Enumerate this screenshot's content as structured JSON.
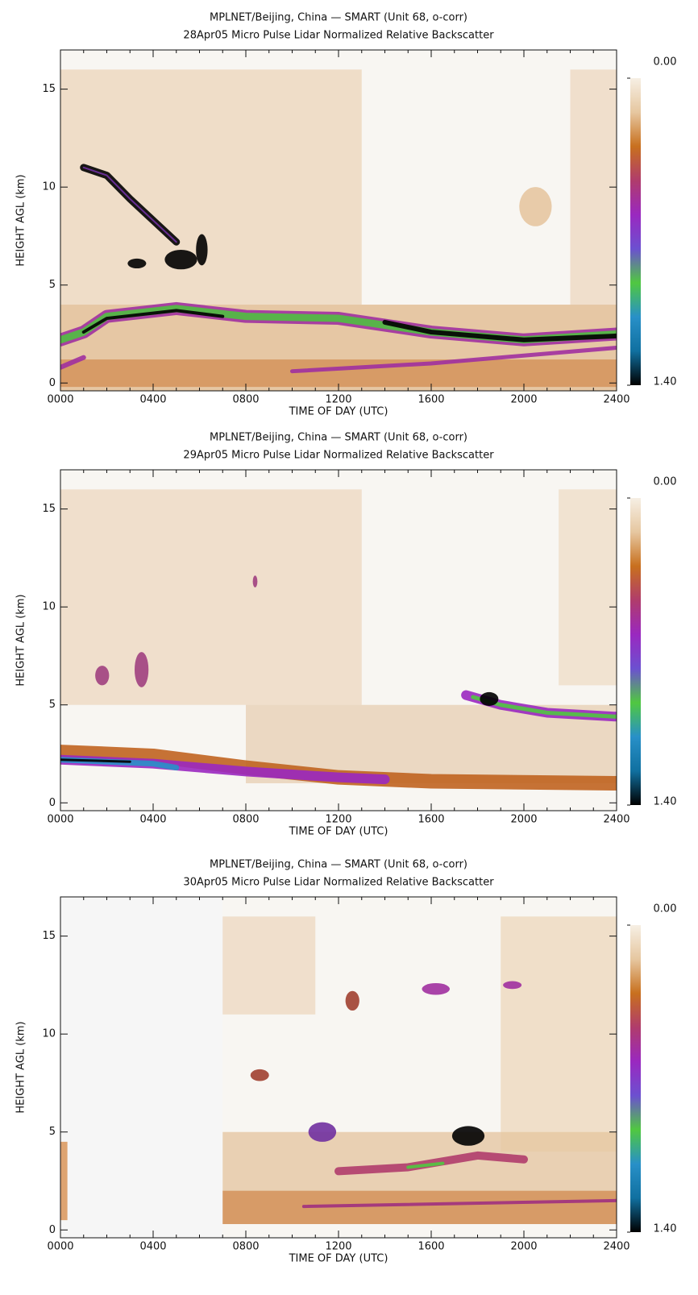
{
  "chart_data": [
    {
      "type": "heatmap",
      "title": "MPLNET/Beijing, China — SMART (Unit 68, o-corr)",
      "subtitle": "28Apr05 Micro Pulse Lidar Normalized Relative Backscatter",
      "x_label": "TIME OF DAY (UTC)",
      "y_label": "HEIGHT AGL (km)",
      "xlim": [
        0,
        24
      ],
      "xticks": [
        {
          "value": 0,
          "label": "0000"
        },
        {
          "value": 4,
          "label": "0400"
        },
        {
          "value": 8,
          "label": "0800"
        },
        {
          "value": 12,
          "label": "1200"
        },
        {
          "value": 16,
          "label": "1600"
        },
        {
          "value": 20,
          "label": "2000"
        },
        {
          "value": 24,
          "label": "2400"
        }
      ],
      "ylim": [
        -0.4,
        17
      ],
      "yticks": [
        0,
        5,
        10,
        15
      ],
      "clim": [
        0,
        1.4
      ],
      "cticks": [
        {
          "value": 0,
          "label": "0.00"
        },
        {
          "value": 1.4,
          "label": "1.40"
        }
      ],
      "colormap": [
        "#f6efe4",
        "#e6c7a0",
        "#c8701e",
        "#b03c6c",
        "#9a28c0",
        "#6c50d0",
        "#50c840",
        "#2890c8",
        "#1070a0",
        "#000000"
      ]
    },
    {
      "type": "heatmap",
      "title": "MPLNET/Beijing, China — SMART (Unit 68, o-corr)",
      "subtitle": "29Apr05 Micro Pulse Lidar Normalized Relative Backscatter",
      "x_label": "TIME OF DAY (UTC)",
      "y_label": "HEIGHT AGL (km)",
      "xlim": [
        0,
        24
      ],
      "xticks": [
        {
          "value": 0,
          "label": "0000"
        },
        {
          "value": 4,
          "label": "0400"
        },
        {
          "value": 8,
          "label": "0800"
        },
        {
          "value": 12,
          "label": "1200"
        },
        {
          "value": 16,
          "label": "1600"
        },
        {
          "value": 20,
          "label": "2000"
        },
        {
          "value": 24,
          "label": "2400"
        }
      ],
      "ylim": [
        -0.4,
        17
      ],
      "yticks": [
        0,
        5,
        10,
        15
      ],
      "clim": [
        0,
        1.4
      ],
      "cticks": [
        {
          "value": 0,
          "label": "0.00"
        },
        {
          "value": 1.4,
          "label": "1.40"
        }
      ],
      "colormap": [
        "#f6efe4",
        "#e6c7a0",
        "#c8701e",
        "#b03c6c",
        "#9a28c0",
        "#6c50d0",
        "#50c840",
        "#2890c8",
        "#1070a0",
        "#000000"
      ]
    },
    {
      "type": "heatmap",
      "title": "MPLNET/Beijing, China — SMART (Unit 68, o-corr)",
      "subtitle": "30Apr05 Micro Pulse Lidar Normalized Relative Backscatter",
      "x_label": "TIME OF DAY (UTC)",
      "y_label": "HEIGHT AGL (km)",
      "xlim": [
        0,
        24
      ],
      "xticks": [
        {
          "value": 0,
          "label": "0000"
        },
        {
          "value": 4,
          "label": "0400"
        },
        {
          "value": 8,
          "label": "0800"
        },
        {
          "value": 12,
          "label": "1200"
        },
        {
          "value": 16,
          "label": "1600"
        },
        {
          "value": 20,
          "label": "2000"
        },
        {
          "value": 24,
          "label": "2400"
        }
      ],
      "ylim": [
        -0.4,
        17
      ],
      "yticks": [
        0,
        5,
        10,
        15
      ],
      "clim": [
        0,
        1.4
      ],
      "cticks": [
        {
          "value": 0,
          "label": "0.00"
        },
        {
          "value": 1.4,
          "label": "1.40"
        }
      ],
      "colormap": [
        "#f6efe4",
        "#e6c7a0",
        "#c8701e",
        "#b03c6c",
        "#9a28c0",
        "#6c50d0",
        "#50c840",
        "#2890c8",
        "#1070a0",
        "#000000"
      ]
    }
  ]
}
